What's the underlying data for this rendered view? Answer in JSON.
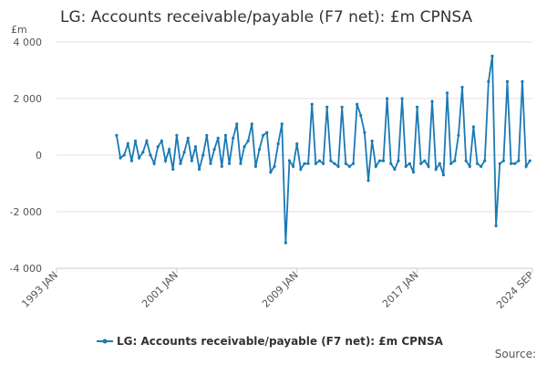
{
  "chart_data": {
    "type": "line",
    "title": "LG: Accounts receivable/payable (F7 net): £m CPNSA",
    "y_label": "£m",
    "source": "Source:",
    "x": [
      1997,
      1997.25,
      1997.5,
      1997.75,
      1998,
      1998.25,
      1998.5,
      1998.75,
      1999,
      1999.25,
      1999.5,
      1999.75,
      2000,
      2000.25,
      2000.5,
      2000.75,
      2001,
      2001.25,
      2001.5,
      2001.75,
      2002,
      2002.25,
      2002.5,
      2002.75,
      2003,
      2003.25,
      2003.5,
      2003.75,
      2004,
      2004.25,
      2004.5,
      2004.75,
      2005,
      2005.25,
      2005.5,
      2005.75,
      2006,
      2006.25,
      2006.5,
      2006.75,
      2007,
      2007.25,
      2007.5,
      2007.75,
      2008,
      2008.25,
      2008.5,
      2008.75,
      2009,
      2009.25,
      2009.5,
      2009.75,
      2010,
      2010.25,
      2010.5,
      2010.75,
      2011,
      2011.25,
      2011.5,
      2011.75,
      2012,
      2012.25,
      2012.5,
      2012.75,
      2013,
      2013.25,
      2013.5,
      2013.75,
      2014,
      2014.25,
      2014.5,
      2014.75,
      2015,
      2015.25,
      2015.5,
      2015.75,
      2016,
      2016.25,
      2016.5,
      2016.75,
      2017,
      2017.25,
      2017.5,
      2017.75,
      2018,
      2018.25,
      2018.5,
      2018.75,
      2019,
      2019.25,
      2019.5,
      2019.75,
      2020,
      2020.25,
      2020.5,
      2020.75,
      2021,
      2021.25,
      2021.5,
      2021.75,
      2022,
      2022.25,
      2022.5,
      2022.75,
      2023,
      2023.25,
      2023.5,
      2023.75,
      2024,
      2024.25,
      2024.5
    ],
    "series": [
      {
        "name": "LG: Accounts receivable/payable (F7 net): £m CPNSA",
        "color": "#1a7ab5",
        "values": [
          700,
          -100,
          0,
          400,
          -200,
          500,
          -100,
          100,
          500,
          0,
          -300,
          300,
          500,
          -200,
          200,
          -500,
          700,
          -300,
          100,
          600,
          -200,
          300,
          -500,
          0,
          700,
          -300,
          200,
          600,
          -400,
          700,
          -300,
          600,
          1100,
          -300,
          300,
          500,
          1100,
          -400,
          200,
          700,
          800,
          -600,
          -400,
          400,
          1100,
          -3100,
          -200,
          -400,
          400,
          -500,
          -300,
          -300,
          1800,
          -300,
          -200,
          -300,
          1700,
          -200,
          -300,
          -400,
          1700,
          -300,
          -400,
          -300,
          1800,
          1400,
          800,
          -900,
          500,
          -400,
          -200,
          -200,
          2000,
          -300,
          -500,
          -200,
          2000,
          -400,
          -300,
          -600,
          1700,
          -300,
          -200,
          -400,
          1900,
          -500,
          -300,
          -700,
          2200,
          -300,
          -200,
          700,
          2400,
          -200,
          -400,
          1000,
          -300,
          -400,
          -200,
          2600,
          3500,
          -2500,
          -300,
          -200,
          2600,
          -300,
          -300,
          -200,
          2600,
          -400,
          -200
        ]
      }
    ],
    "xlim": [
      1993,
      2024.67
    ],
    "xticks": [
      {
        "value": 1993,
        "label": "1993 JAN"
      },
      {
        "value": 2001,
        "label": "2001 JAN"
      },
      {
        "value": 2009,
        "label": "2009 JAN"
      },
      {
        "value": 2017,
        "label": "2017 JAN"
      },
      {
        "value": 2024.67,
        "label": "2024 SEP"
      }
    ],
    "ylim": [
      -4000,
      4000
    ],
    "yticks": [
      {
        "value": -4000,
        "label": "-4 000"
      },
      {
        "value": -2000,
        "label": "-2 000"
      },
      0,
      {
        "value": 2000,
        "label": "2 000"
      },
      {
        "value": 4000,
        "label": "4 000"
      }
    ],
    "grid": true,
    "legend": "bottom"
  }
}
